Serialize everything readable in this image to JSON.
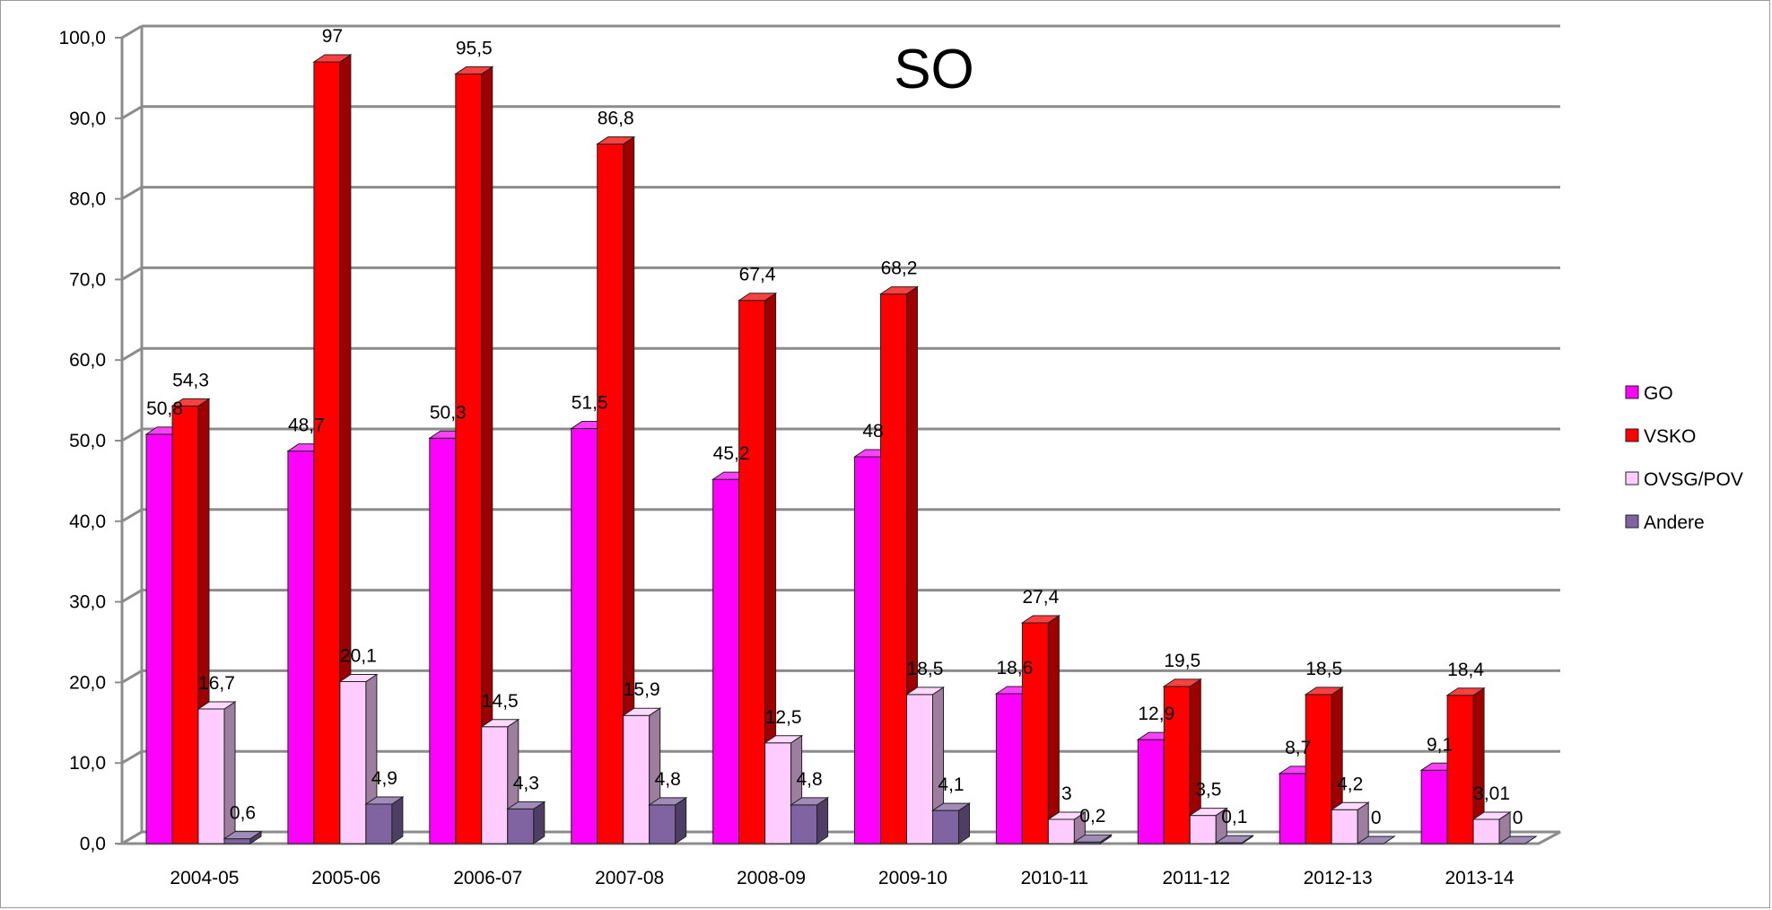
{
  "chart_data": {
    "type": "bar",
    "title": "SO",
    "categories": [
      "2004-05",
      "2005-06",
      "2006-07",
      "2007-08",
      "2008-09",
      "2009-10",
      "2010-11",
      "2011-12",
      "2012-13",
      "2013-14"
    ],
    "series": [
      {
        "name": "GO",
        "color": "#ff00ff",
        "values": [
          50.8,
          48.7,
          50.3,
          51.5,
          45.2,
          48,
          18.6,
          12.9,
          8.7,
          9.1
        ],
        "labels": [
          "50,8",
          "48,7",
          "50,3",
          "51,5",
          "45,2",
          "48",
          "18,6",
          "12,9",
          "8,7",
          "9,1"
        ]
      },
      {
        "name": "VSKO",
        "color": "#ff0000",
        "values": [
          54.3,
          97,
          95.5,
          86.8,
          67.4,
          68.2,
          27.4,
          19.5,
          18.5,
          18.4
        ],
        "labels": [
          "54,3",
          "97",
          "95,5",
          "86,8",
          "67,4",
          "68,2",
          "27,4",
          "19,5",
          "18,5",
          "18,4"
        ]
      },
      {
        "name": "OVSG/POV",
        "color": "#ffccff",
        "values": [
          16.7,
          20.1,
          14.5,
          15.9,
          12.5,
          18.5,
          3,
          3.5,
          4.2,
          3.01
        ],
        "labels": [
          "16,7",
          "20,1",
          "14,5",
          "15,9",
          "12,5",
          "18,5",
          "3",
          "3,5",
          "4,2",
          "3,01"
        ]
      },
      {
        "name": "Andere",
        "color": "#8064a2",
        "values": [
          0.6,
          4.9,
          4.3,
          4.8,
          4.8,
          4.1,
          0.2,
          0.1,
          0,
          0
        ],
        "labels": [
          "0,6",
          "4,9",
          "4,3",
          "4,8",
          "4,8",
          "4,1",
          "0,2",
          "0,1",
          "0",
          "0"
        ]
      }
    ],
    "ylim": [
      0,
      100
    ],
    "yticks": [
      "0,0",
      "10,0",
      "20,0",
      "30,0",
      "40,0",
      "50,0",
      "60,0",
      "70,0",
      "80,0",
      "90,0",
      "100,0"
    ],
    "grid": true,
    "legend_position": "right"
  }
}
